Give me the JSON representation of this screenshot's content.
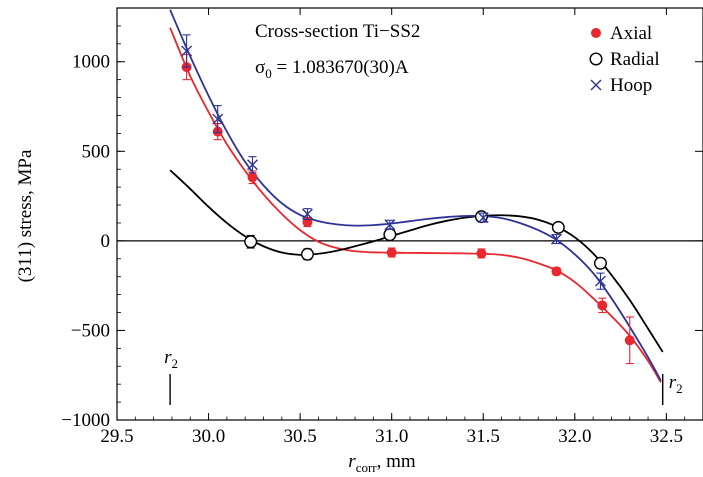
{
  "chart_data": {
    "type": "scatter",
    "title": "Cross-section Ti−SS2",
    "subtitle_prefix": "σ",
    "subtitle_sub": "0",
    "subtitle_suffix": " = 1.083670(30)A",
    "xlabel_main": "r",
    "xlabel_sub": "corr",
    "xlabel_unit": ", mm",
    "ylabel": "(311) stress, MPa",
    "xlim": [
      29.5,
      32.7
    ],
    "ylim": [
      -1000,
      1300
    ],
    "xticks": [
      29.5,
      30.0,
      30.5,
      31.0,
      31.5,
      32.0,
      32.5
    ],
    "xtick_labels": [
      "29.5",
      "30.0",
      "30.5",
      "31.0",
      "31.5",
      "32.0",
      "32.5"
    ],
    "yticks": [
      -1000,
      -500,
      0,
      500,
      1000
    ],
    "ytick_labels": [
      "−1000",
      "−500",
      "0",
      "500",
      "1000"
    ],
    "legend_position": "top-right",
    "series": [
      {
        "name": "Axial",
        "marker": "filled-circle",
        "color": "#e8272e",
        "x": [
          29.88,
          30.05,
          30.24,
          30.54,
          31.0,
          31.49,
          31.9,
          32.15,
          32.3
        ],
        "y": [
          970,
          610,
          355,
          105,
          -65,
          -70,
          -170,
          -360,
          -555
        ],
        "err": [
          70,
          45,
          35,
          25,
          25,
          25,
          20,
          40,
          130
        ],
        "fit_x": [
          29.79,
          29.9,
          30.0,
          30.1,
          30.2,
          30.3,
          30.4,
          30.5,
          30.6,
          30.7,
          30.8,
          30.9,
          31.0,
          31.1,
          31.2,
          31.3,
          31.4,
          31.5,
          31.6,
          31.7,
          31.8,
          31.9,
          32.0,
          32.1,
          32.2,
          32.3,
          32.4,
          32.47
        ],
        "fit_y": [
          1190,
          920,
          720,
          540,
          390,
          260,
          150,
          60,
          -5,
          -40,
          -58,
          -64,
          -66,
          -67,
          -68,
          -69,
          -70,
          -72,
          -78,
          -95,
          -125,
          -165,
          -230,
          -320,
          -420,
          -530,
          -670,
          -790
        ]
      },
      {
        "name": "Radial",
        "marker": "open-circle",
        "color": "#000000",
        "x": [
          30.23,
          30.54,
          30.99,
          31.49,
          31.91,
          32.14
        ],
        "y": [
          -5,
          -75,
          35,
          135,
          75,
          -125
        ],
        "err": [
          35,
          30,
          25,
          25,
          25,
          25
        ],
        "fit_x": [
          29.79,
          29.9,
          30.0,
          30.1,
          30.2,
          30.3,
          30.4,
          30.5,
          30.6,
          30.7,
          30.8,
          30.9,
          31.0,
          31.1,
          31.2,
          31.3,
          31.4,
          31.5,
          31.6,
          31.7,
          31.8,
          31.9,
          32.0,
          32.1,
          32.2,
          32.3,
          32.4,
          32.48
        ],
        "fit_y": [
          395,
          290,
          190,
          100,
          25,
          -30,
          -65,
          -78,
          -72,
          -55,
          -30,
          -3,
          28,
          58,
          88,
          112,
          130,
          140,
          143,
          137,
          118,
          80,
          20,
          -70,
          -190,
          -330,
          -490,
          -620
        ]
      },
      {
        "name": "Hoop",
        "marker": "x",
        "color": "#2d3494",
        "x": [
          29.88,
          30.05,
          30.24,
          30.54,
          30.99,
          31.5,
          31.9,
          32.14
        ],
        "y": [
          1060,
          680,
          425,
          150,
          90,
          130,
          10,
          -225
        ],
        "err": [
          90,
          75,
          45,
          30,
          25,
          25,
          25,
          45
        ],
        "fit_x": [
          29.79,
          29.9,
          30.0,
          30.1,
          30.2,
          30.3,
          30.4,
          30.5,
          30.6,
          30.7,
          30.8,
          30.9,
          31.0,
          31.1,
          31.2,
          31.3,
          31.4,
          31.5,
          31.6,
          31.7,
          31.8,
          31.9,
          32.0,
          32.1,
          32.2,
          32.3,
          32.4,
          32.47
        ],
        "fit_y": [
          1290,
          1030,
          810,
          610,
          440,
          310,
          210,
          145,
          110,
          92,
          85,
          88,
          97,
          110,
          123,
          133,
          139,
          138,
          127,
          100,
          60,
          5,
          -75,
          -180,
          -320,
          -480,
          -650,
          -780
        ]
      }
    ],
    "zero_line": true,
    "annotations": [
      {
        "text_main": "r",
        "text_sub": "2",
        "x": 29.79,
        "side": "left"
      },
      {
        "text_main": "r",
        "text_sub": "2",
        "x": 32.48,
        "side": "right"
      }
    ]
  }
}
